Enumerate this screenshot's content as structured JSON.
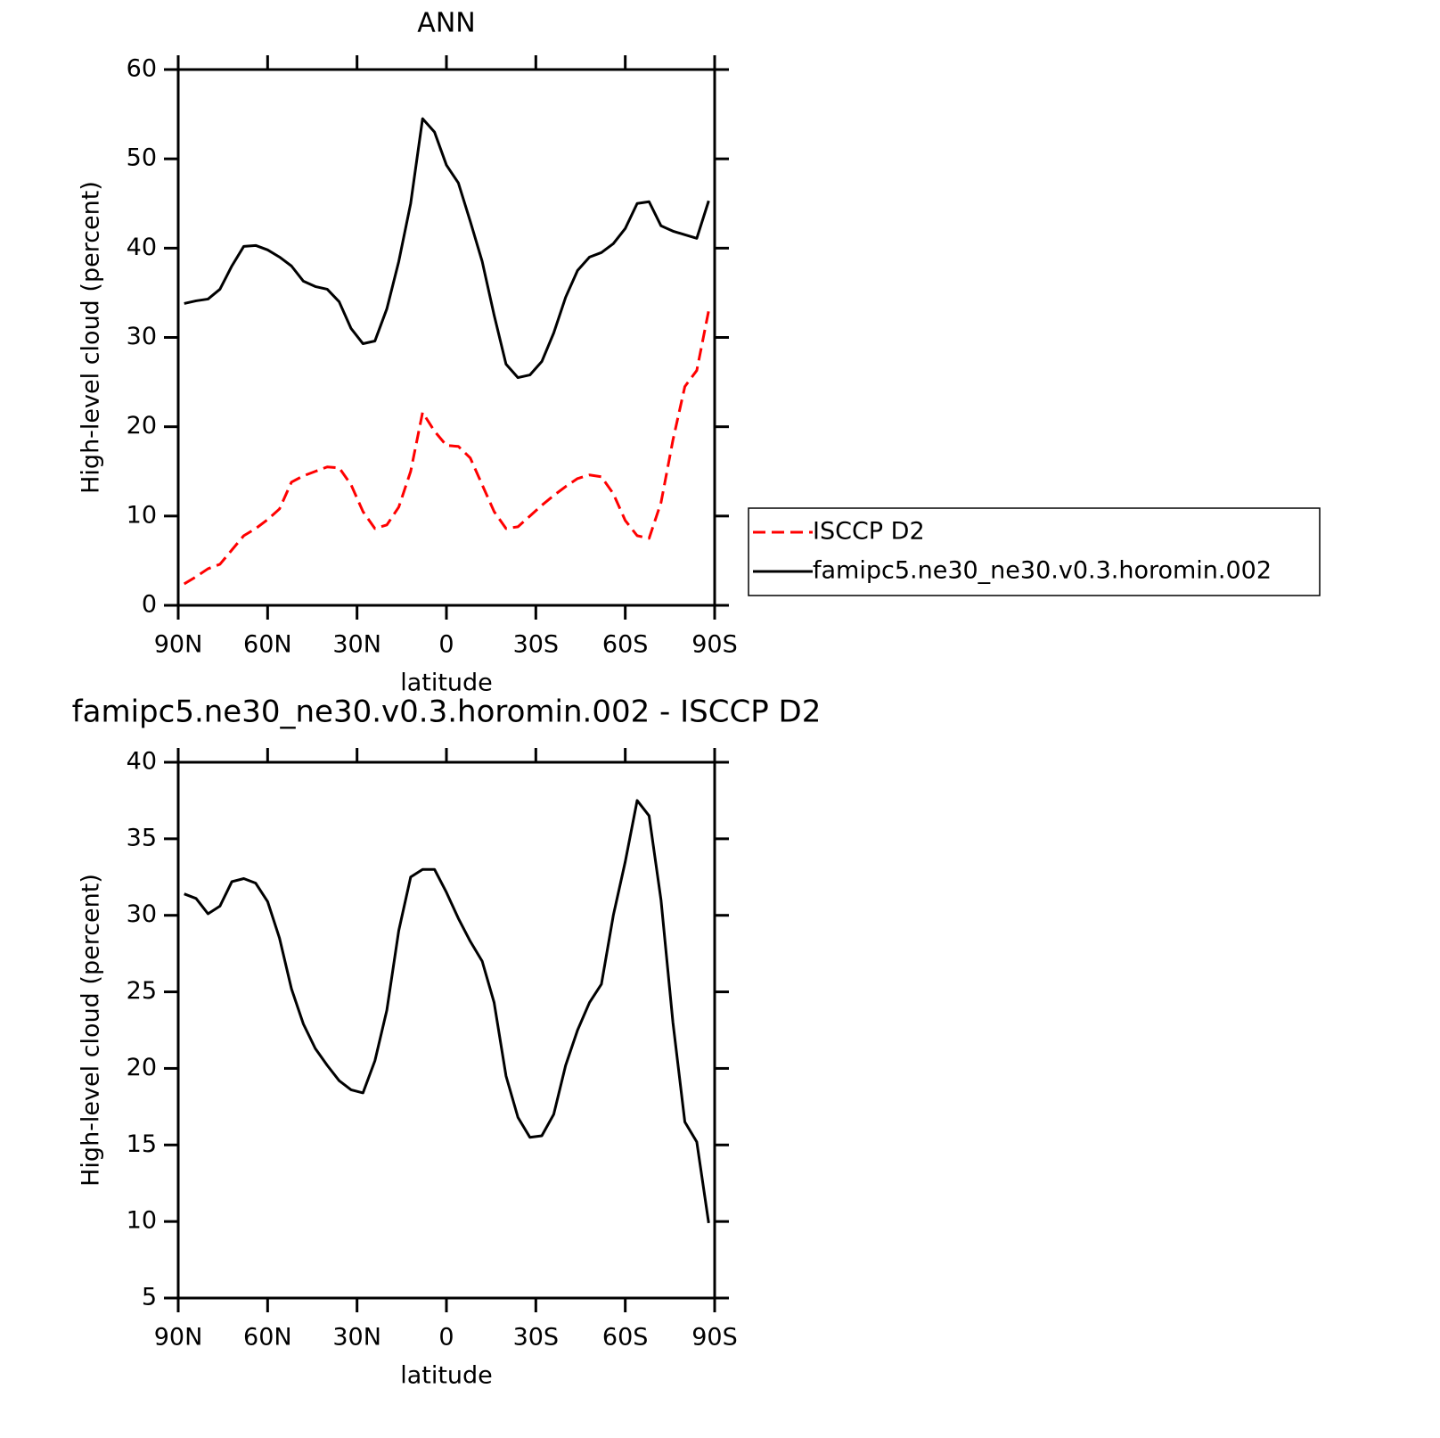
{
  "chart_data": [
    {
      "type": "line",
      "title": "ANN",
      "xlabel": "latitude",
      "ylabel": "High-level cloud (percent)",
      "x": [
        88,
        84,
        80,
        76,
        72,
        68,
        64,
        60,
        56,
        52,
        48,
        44,
        40,
        36,
        32,
        28,
        24,
        20,
        16,
        12,
        8,
        4,
        0,
        -4,
        -8,
        -12,
        -16,
        -20,
        -24,
        -28,
        -32,
        -36,
        -40,
        -44,
        -48,
        -52,
        -56,
        -60,
        -64,
        -68,
        -72,
        -76,
        -80,
        -84,
        -88
      ],
      "series": [
        {
          "name": "ISCCP D2",
          "color": "#ff0000",
          "dashed": true,
          "values": [
            2.4,
            3.2,
            4.1,
            4.6,
            6.2,
            7.8,
            8.6,
            9.6,
            10.8,
            13.8,
            14.5,
            15,
            15.5,
            15.4,
            13.5,
            10.5,
            8.6,
            9,
            11,
            15,
            21.6,
            19.5,
            17.9,
            17.8,
            16.5,
            13.5,
            10.5,
            8.6,
            8.8,
            10,
            11.2,
            12.3,
            13.3,
            14.2,
            14.6,
            14.4,
            12.5,
            9.5,
            7.8,
            7.5,
            11.5,
            18.5,
            24.5,
            26.3,
            33
          ]
        },
        {
          "name": "famipc5.ne30_ne30.v0.3.horomin.002",
          "color": "#000000",
          "dashed": false,
          "values": [
            33.8,
            34.1,
            34.3,
            35.4,
            38,
            40.2,
            40.3,
            39.8,
            39,
            38,
            36.3,
            35.7,
            35.4,
            34,
            31,
            29.3,
            29.6,
            33.2,
            38.5,
            45,
            54.5,
            53,
            49.3,
            47.3,
            43,
            38.5,
            32.5,
            27,
            25.5,
            25.8,
            27.3,
            30.5,
            34.5,
            37.5,
            39,
            39.5,
            40.5,
            42.2,
            45,
            45.2,
            42.5,
            41.9,
            41.5,
            41.1,
            45.3
          ]
        }
      ],
      "xlim": [
        90,
        -90
      ],
      "xticks": [
        {
          "value": 90,
          "label": "90N"
        },
        {
          "value": 60,
          "label": "60N"
        },
        {
          "value": 30,
          "label": "30N"
        },
        0,
        {
          "value": -30,
          "label": "30S"
        },
        {
          "value": -60,
          "label": "60S"
        },
        {
          "value": -90,
          "label": "90S"
        }
      ],
      "ylim": [
        0,
        60
      ],
      "yticks": [
        0,
        10,
        20,
        30,
        40,
        50,
        60
      ],
      "legend": "right"
    },
    {
      "type": "line",
      "title": "famipc5.ne30_ne30.v0.3.horomin.002 - ISCCP D2",
      "xlabel": "latitude",
      "ylabel": "High-level cloud (percent)",
      "x": [
        88,
        84,
        80,
        76,
        72,
        68,
        64,
        60,
        56,
        52,
        48,
        44,
        40,
        36,
        32,
        28,
        24,
        20,
        16,
        12,
        8,
        4,
        0,
        -4,
        -8,
        -12,
        -16,
        -20,
        -24,
        -28,
        -32,
        -36,
        -40,
        -44,
        -48,
        -52,
        -56,
        -60,
        -64,
        -68,
        -72,
        -76,
        -80,
        -84,
        -88
      ],
      "series": [
        {
          "color": "#000000",
          "dashed": false,
          "values": [
            31.4,
            31.1,
            30.1,
            30.6,
            32.2,
            32.4,
            32.1,
            30.9,
            28.5,
            25.2,
            22.9,
            21.3,
            20.2,
            19.2,
            18.6,
            18.4,
            20.5,
            23.8,
            29,
            32.5,
            33,
            33,
            31.5,
            29.8,
            28.3,
            27,
            24.3,
            19.5,
            16.8,
            15.5,
            15.6,
            17,
            20.2,
            22.5,
            24.3,
            25.5,
            30,
            33.5,
            37.5,
            36.5,
            31,
            23,
            16.5,
            15.2,
            9.9
          ]
        }
      ],
      "xlim": [
        90,
        -90
      ],
      "xticks": [
        {
          "value": 90,
          "label": "90N"
        },
        {
          "value": 60,
          "label": "60N"
        },
        {
          "value": 30,
          "label": "30N"
        },
        0,
        {
          "value": -30,
          "label": "30S"
        },
        {
          "value": -60,
          "label": "60S"
        },
        {
          "value": -90,
          "label": "90S"
        }
      ],
      "ylim": [
        5,
        40
      ],
      "yticks": [
        5,
        10,
        15,
        20,
        25,
        30,
        35,
        40
      ]
    }
  ]
}
